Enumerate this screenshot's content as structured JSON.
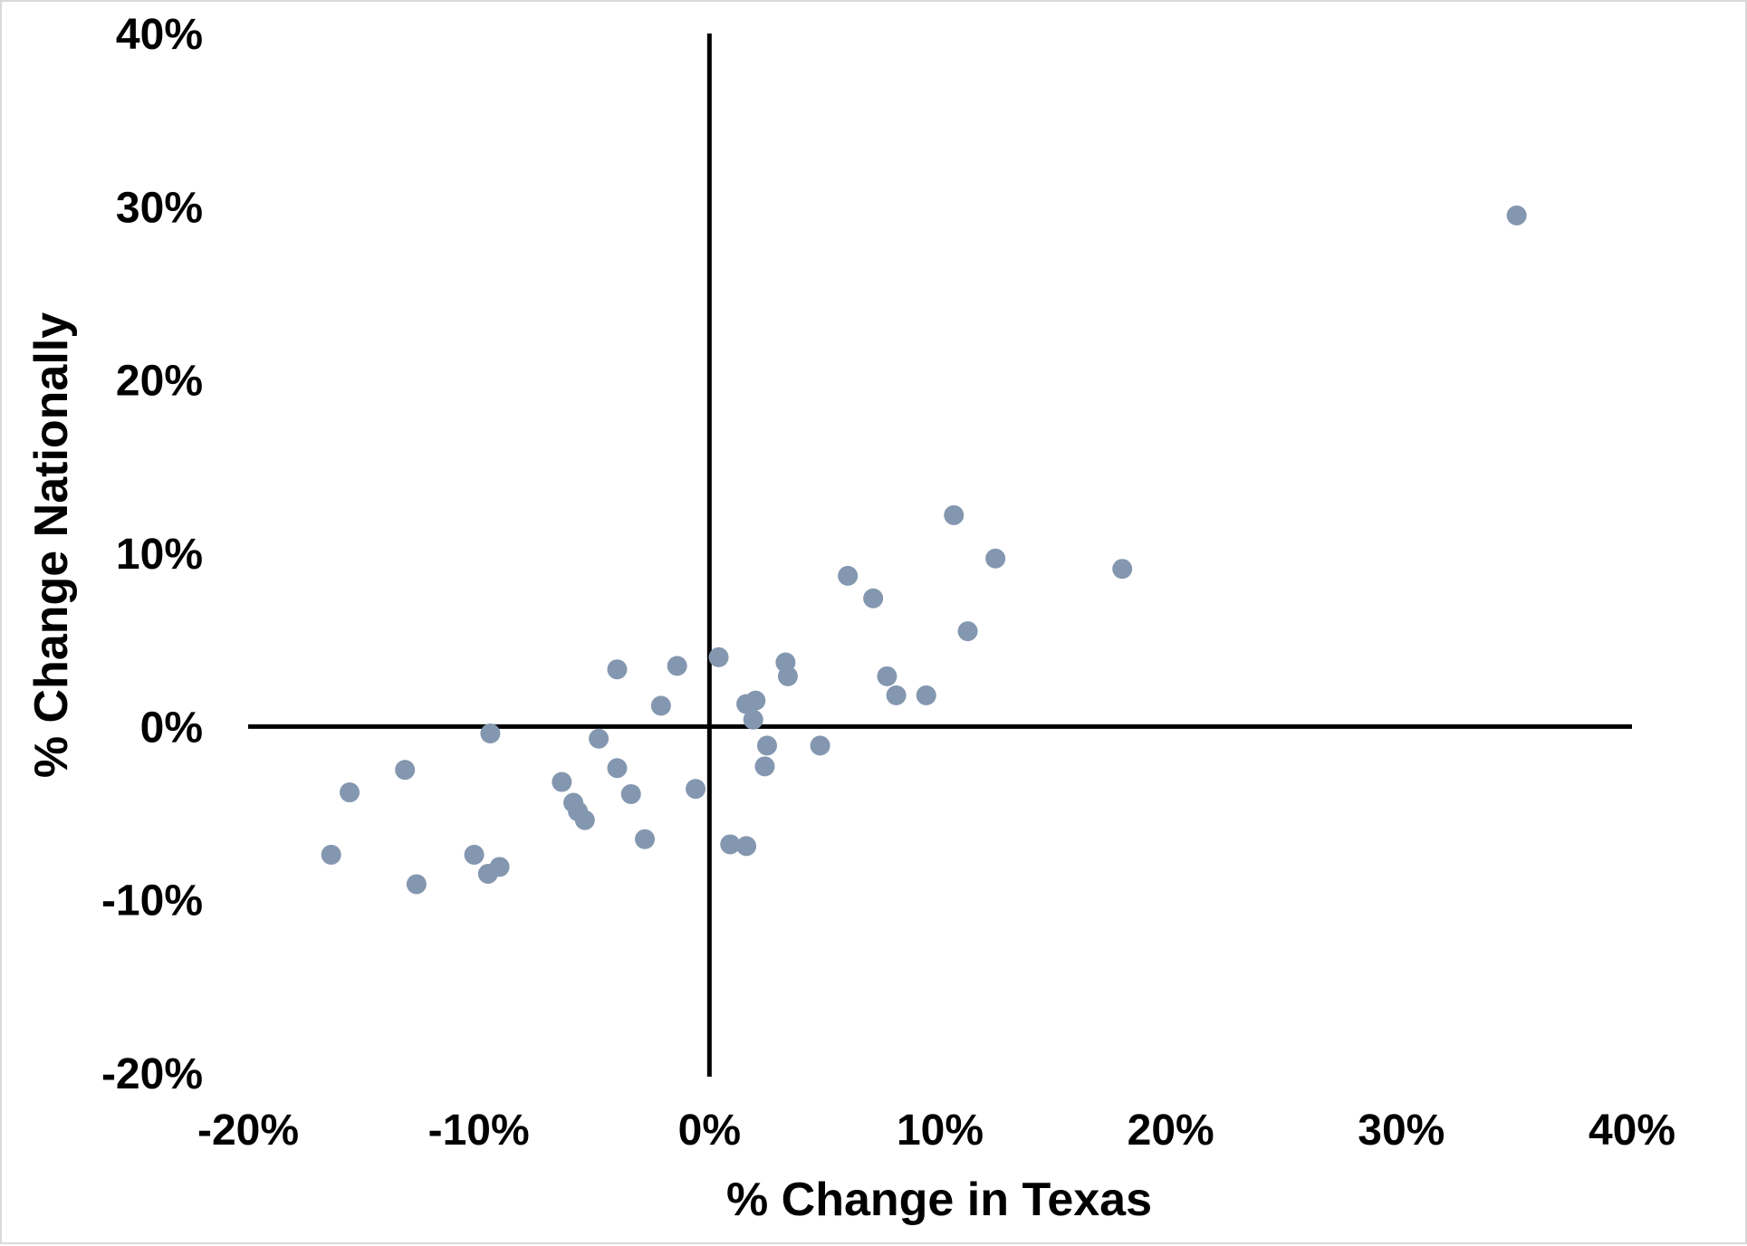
{
  "chart_data": {
    "type": "scatter",
    "title": "",
    "xlabel": "% Change in Texas",
    "ylabel": "% Change Nationally",
    "xlim": [
      -20,
      40
    ],
    "ylim": [
      -20,
      40
    ],
    "x_ticks": [
      "-20%",
      "-10%",
      "0%",
      "10%",
      "20%",
      "30%",
      "40%"
    ],
    "y_ticks": [
      "40%",
      "30%",
      "20%",
      "10%",
      "0%",
      "-10%",
      "-20%"
    ],
    "grid": false,
    "legend": "none",
    "marker_color": "#8497b0",
    "series": [
      {
        "x": [
          35.0,
          10.6,
          12.4,
          17.9,
          6.0,
          7.1,
          11.2,
          0.4,
          3.3,
          3.4,
          -4.0,
          -1.4,
          7.7,
          8.1,
          9.4,
          2.0,
          1.6,
          1.9,
          -2.1,
          -9.5,
          -4.8,
          2.5,
          4.8,
          2.4,
          -13.2,
          -15.6,
          -6.4,
          -4.0,
          -5.9,
          -3.4,
          -0.6,
          -5.7,
          -5.4,
          -2.8,
          0.9,
          1.6,
          -16.4,
          -10.2,
          -9.1,
          -9.6,
          -12.7
        ],
        "y": [
          29.5,
          12.2,
          9.7,
          9.1,
          8.7,
          7.4,
          5.5,
          4.0,
          3.7,
          2.9,
          3.3,
          3.5,
          2.9,
          1.8,
          1.8,
          1.5,
          1.3,
          0.4,
          1.2,
          -0.4,
          -0.7,
          -1.1,
          -1.1,
          -2.3,
          -2.5,
          -3.8,
          -3.2,
          -2.4,
          -4.4,
          -3.9,
          -3.6,
          -4.9,
          -5.4,
          -6.5,
          -6.8,
          -6.9,
          -7.4,
          -7.4,
          -8.1,
          -8.5,
          -9.1
        ]
      }
    ]
  }
}
